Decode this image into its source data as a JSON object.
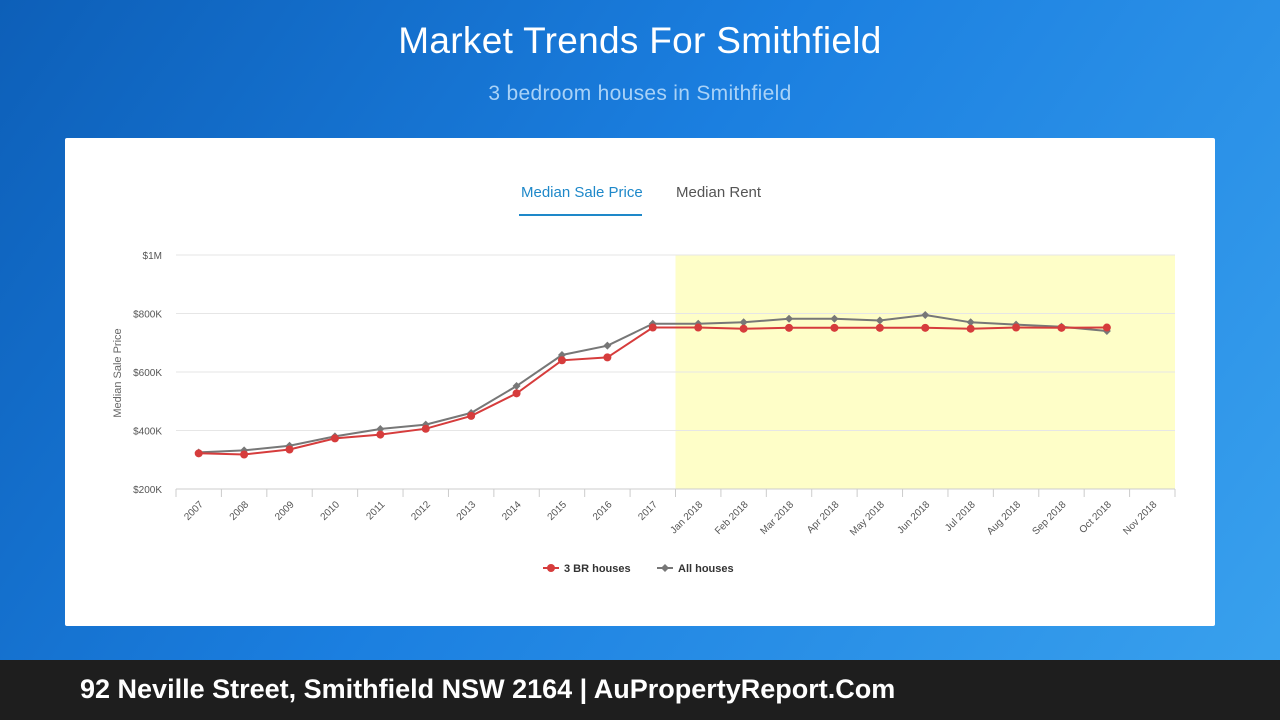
{
  "page": {
    "title": "Market Trends For Smithfield",
    "subtitle": "3 bedroom houses in Smithfield"
  },
  "tabs": [
    {
      "label": "Median Sale Price",
      "active": true
    },
    {
      "label": "Median Rent",
      "active": false
    }
  ],
  "footer": {
    "text": "92 Neville Street, Smithfield NSW 2164 | AuPropertyReport.Com"
  },
  "chart_data": {
    "type": "line",
    "ylabel": "Median Sale Price",
    "xlabel": "",
    "ylim": [
      200000,
      1000000
    ],
    "yticks": [
      {
        "value": 200000,
        "label": "$200K"
      },
      {
        "value": 400000,
        "label": "$400K"
      },
      {
        "value": 600000,
        "label": "$600K"
      },
      {
        "value": 800000,
        "label": "$800K"
      },
      {
        "value": 1000000,
        "label": "$1M"
      }
    ],
    "categories": [
      "2007",
      "2008",
      "2009",
      "2010",
      "2011",
      "2012",
      "2013",
      "2014",
      "2015",
      "2016",
      "2017",
      "Jan 2018",
      "Feb 2018",
      "Mar 2018",
      "Apr 2018",
      "May 2018",
      "Jun 2018",
      "Jul 2018",
      "Aug 2018",
      "Sep 2018",
      "Oct 2018",
      "Nov 2018"
    ],
    "highlight_range": [
      "Jan 2018",
      "Nov 2018"
    ],
    "highlight_color": "#fefec8",
    "grid": true,
    "legend_position": "bottom",
    "series": [
      {
        "name": "3 BR houses",
        "color": "#d63c3c",
        "marker": "circle",
        "values": [
          322000,
          318000,
          335000,
          373000,
          386000,
          406000,
          450000,
          527000,
          640000,
          650000,
          752000,
          752000,
          748000,
          751000,
          751000,
          751000,
          751000,
          748000,
          752000,
          751000,
          752000,
          null
        ]
      },
      {
        "name": "All houses",
        "color": "#777777",
        "marker": "diamond",
        "values": [
          325000,
          332000,
          348000,
          380000,
          405000,
          420000,
          460000,
          552000,
          658000,
          690000,
          765000,
          765000,
          770000,
          782000,
          782000,
          776000,
          795000,
          770000,
          762000,
          755000,
          740000,
          null
        ]
      }
    ]
  }
}
